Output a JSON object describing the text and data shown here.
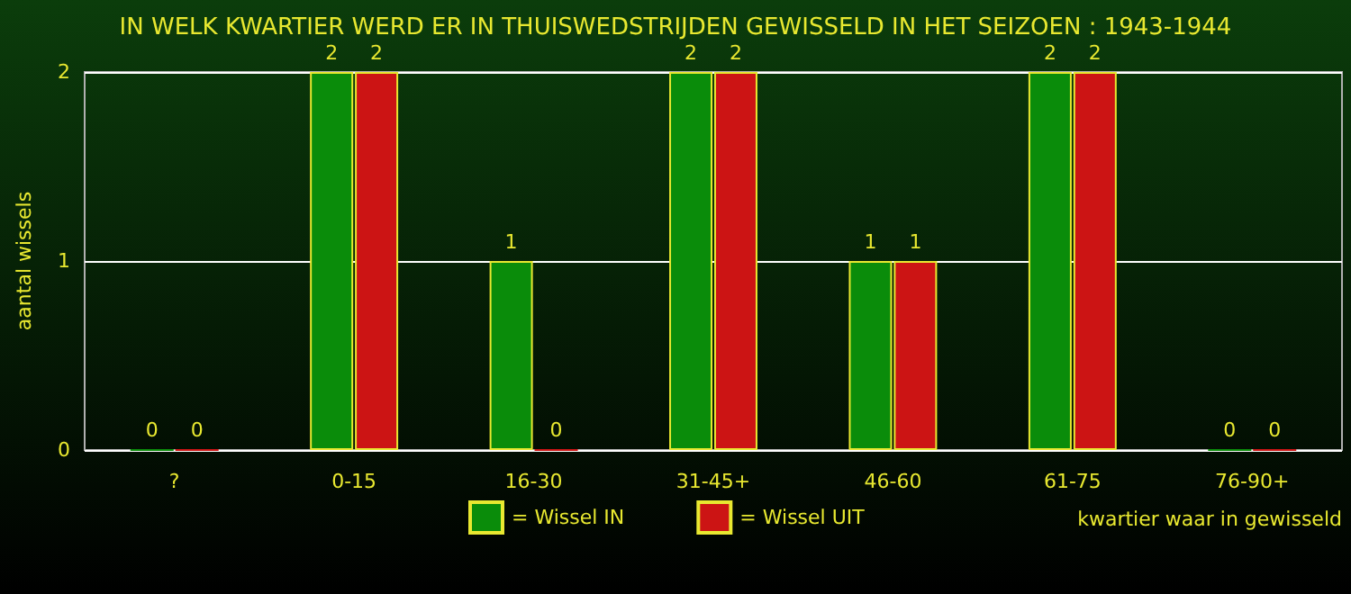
{
  "chart_data": {
    "type": "bar",
    "title": "IN WELK KWARTIER WERD ER IN THUISWEDSTRIJDEN GEWISSELD IN HET SEIZOEN : 1943-1944",
    "ylabel": "aantal wissels",
    "xlabel": "kwartier waar in gewisseld",
    "categories": [
      "?",
      "0-15",
      "16-30",
      "31-45+",
      "46-60",
      "61-75",
      "76-90+"
    ],
    "series": [
      {
        "name": "= Wissel IN",
        "color": "#0a8c0a",
        "values": [
          0,
          2,
          1,
          2,
          1,
          2,
          0
        ]
      },
      {
        "name": "= Wissel UIT",
        "color": "#cc1414",
        "values": [
          0,
          2,
          0,
          2,
          1,
          2,
          0
        ]
      }
    ],
    "ylim": [
      0,
      2
    ],
    "yticks": [
      0,
      1,
      2
    ],
    "grid": "y",
    "legend": "bottom",
    "data_labels": true
  }
}
